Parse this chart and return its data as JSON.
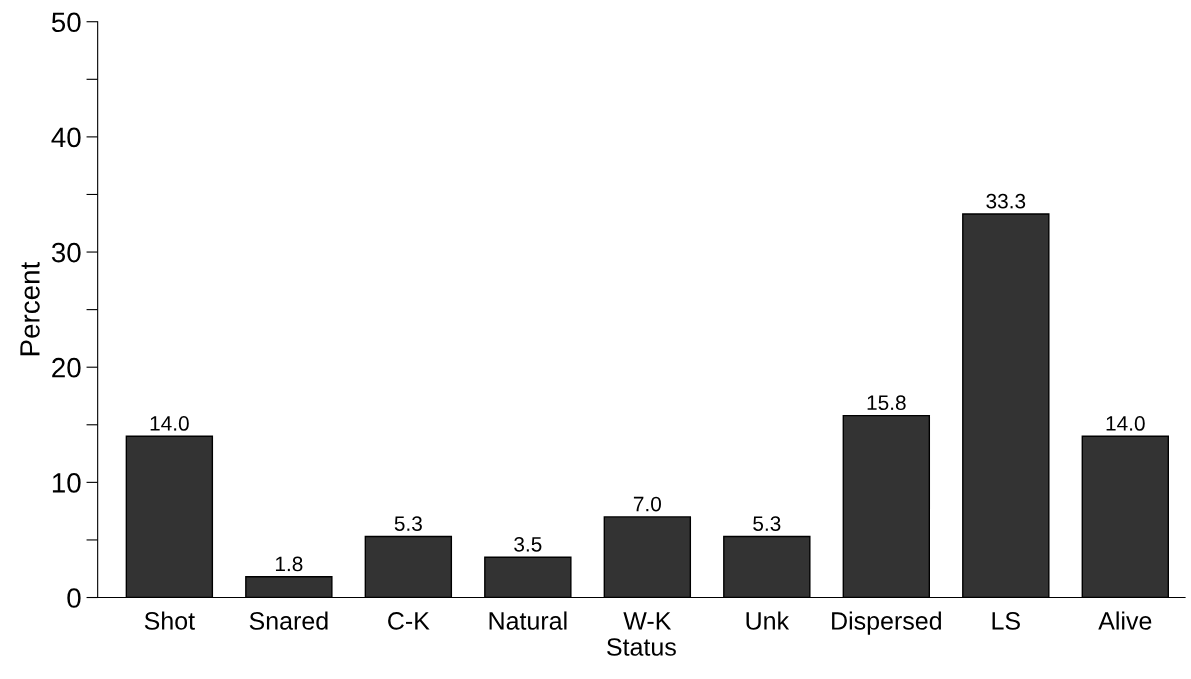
{
  "chart_data": {
    "type": "bar",
    "xlabel": "Status",
    "ylabel": "Percent",
    "categories": [
      "Shot",
      "Snared",
      "C-K",
      "Natural",
      "W-K",
      "Unk",
      "Dispersed",
      "LS",
      "Alive"
    ],
    "values": [
      14.0,
      1.8,
      5.3,
      3.5,
      7.0,
      5.3,
      15.8,
      33.3,
      14.0
    ],
    "value_labels": [
      "14.0",
      "1.8",
      "5.3",
      "3.5",
      "7.0",
      "5.3",
      "15.8",
      "33.3",
      "14.0"
    ],
    "color": "#333333",
    "ylim": [
      0,
      50
    ],
    "yticks": [
      0,
      {
        "value": 5,
        "label": null
      },
      10,
      {
        "value": 15,
        "label": null
      },
      20,
      {
        "value": 25,
        "label": null
      },
      30,
      {
        "value": 35,
        "label": null
      },
      40,
      {
        "value": 45,
        "label": null
      },
      50
    ],
    "grid": false
  }
}
